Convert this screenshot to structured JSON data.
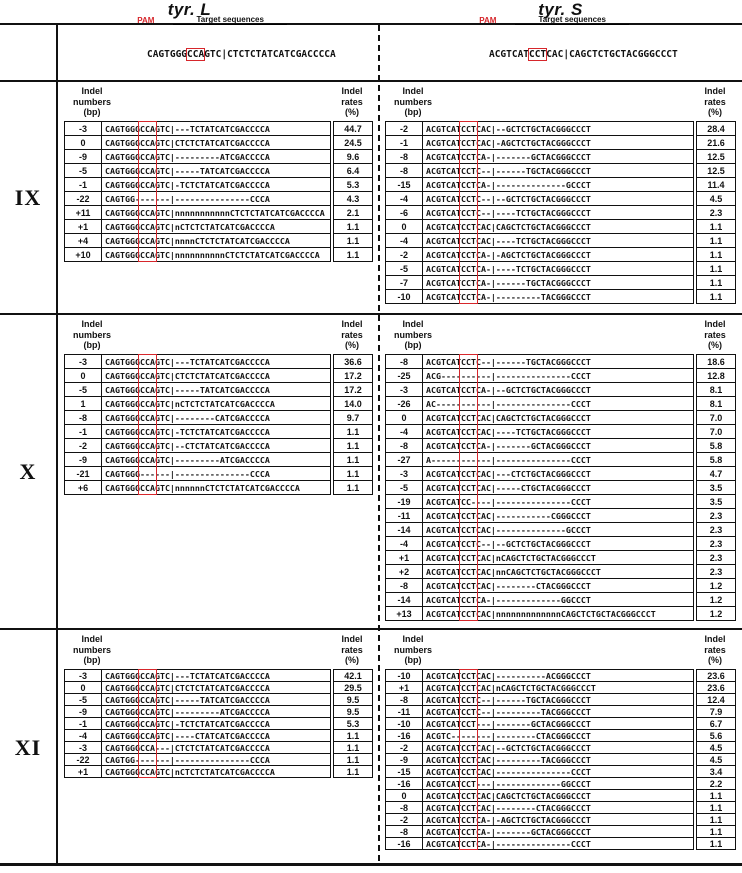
{
  "figure": {
    "titles": {
      "left": "tyr. L",
      "right": "tyr. S"
    },
    "pam_label": "PAM",
    "target_label": "Target sequences",
    "colors": {
      "pam_red": "#d6262b"
    },
    "refs": {
      "left": {
        "prefix": "CAGTGGG",
        "pam": "CCA",
        "suffix": "GTC|CTCTCTATCATCGACCCCA"
      },
      "right": {
        "prefix": "ACGTCAT",
        "pam": "CCT",
        "suffix": "CAC|CAGCTCTGCTACGGGCCCT"
      }
    },
    "column_headers": {
      "numbers": "Indel\nnumbers\n(bp)",
      "rates": "Indel\nrates\n(%)"
    },
    "panels": [
      {
        "label": "IX",
        "left_rows": [
          {
            "indel": "-3",
            "seq": "CAGTGGGCCAGTC|---TCTATCATCGACCCCA",
            "rate": "44.7"
          },
          {
            "indel": "0",
            "seq": "CAGTGGGCCAGTC|CTCTCTATCATCGACCCCA",
            "rate": "24.5"
          },
          {
            "indel": "-9",
            "seq": "CAGTGGGCCAGTC|---------ATCGACCCCA",
            "rate": "9.6"
          },
          {
            "indel": "-5",
            "seq": "CAGTGGGCCAGTC|-----TATCATCGACCCCA",
            "rate": "6.4"
          },
          {
            "indel": "-1",
            "seq": "CAGTGGGCCAGTC|-TCTCTATCATCGACCCCA",
            "rate": "5.3"
          },
          {
            "indel": "-22",
            "seq": "CAGTGG-------|---------------CCCA",
            "rate": "4.3"
          },
          {
            "indel": "+11",
            "seq": "CAGTGGGCCAGTC|nnnnnnnnnnnCTCTCTATCATCGACCCCA",
            "rate": "2.1"
          },
          {
            "indel": "+1",
            "seq": "CAGTGGGCCAGTC|nCTCTCTATCATCGACCCCA",
            "rate": "1.1"
          },
          {
            "indel": "+4",
            "seq": "CAGTGGGCCAGTC|nnnnCTCTCTATCATCGACCCCA",
            "rate": "1.1"
          },
          {
            "indel": "+10",
            "seq": "CAGTGGGCCAGTC|nnnnnnnnnnCTCTCTATCATCGACCCCA",
            "rate": "1.1"
          }
        ],
        "right_rows": [
          {
            "indel": "-2",
            "seq": "ACGTCATCCTCAC|--GCTCTGCTACGGGCCCT",
            "rate": "28.4"
          },
          {
            "indel": "-1",
            "seq": "ACGTCATCCTCAC|-AGCTCTGCTACGGGCCCT",
            "rate": "21.6"
          },
          {
            "indel": "-8",
            "seq": "ACGTCATCCTCA-|-------GCTACGGGCCCT",
            "rate": "12.5"
          },
          {
            "indel": "-8",
            "seq": "ACGTCATCCTC--|------TGCTACGGGCCCT",
            "rate": "12.5"
          },
          {
            "indel": "-15",
            "seq": "ACGTCATCCTCA-|--------------GCCCT",
            "rate": "11.4"
          },
          {
            "indel": "-4",
            "seq": "ACGTCATCCTC--|--GCTCTGCTACGGGCCCT",
            "rate": "4.5"
          },
          {
            "indel": "-6",
            "seq": "ACGTCATCCTC--|----TCTGCTACGGGCCCT",
            "rate": "2.3"
          },
          {
            "indel": "0",
            "seq": "ACGTCATCCTCAC|CAGCTCTGCTACGGGCCCT",
            "rate": "1.1"
          },
          {
            "indel": "-4",
            "seq": "ACGTCATCCTCAC|----TCTGCTACGGGCCCT",
            "rate": "1.1"
          },
          {
            "indel": "-2",
            "seq": "ACGTCATCCTCA-|-AGCTCTGCTACGGGCCCT",
            "rate": "1.1"
          },
          {
            "indel": "-5",
            "seq": "ACGTCATCCTCA-|----TCTGCTACGGGCCCT",
            "rate": "1.1"
          },
          {
            "indel": "-7",
            "seq": "ACGTCATCCTCA-|------TGCTACGGGCCCT",
            "rate": "1.1"
          },
          {
            "indel": "-10",
            "seq": "ACGTCATCCTCA-|---------TACGGGCCCT",
            "rate": "1.1"
          }
        ]
      },
      {
        "label": "X",
        "left_rows": [
          {
            "indel": "-3",
            "seq": "CAGTGGGCCAGTC|---TCTATCATCGACCCCA",
            "rate": "36.6"
          },
          {
            "indel": "0",
            "seq": "CAGTGGGCCAGTC|CTCTCTATCATCGACCCCA",
            "rate": "17.2"
          },
          {
            "indel": "-5",
            "seq": "CAGTGGGCCAGTC|-----TATCATCGACCCCA",
            "rate": "17.2"
          },
          {
            "indel": "1",
            "seq": "CAGTGGGCCAGTC|nCTCTCTATCATCGACCCCA",
            "rate": "14.0"
          },
          {
            "indel": "-8",
            "seq": "CAGTGGGCCAGTC|--------CATCGACCCCA",
            "rate": "9.7"
          },
          {
            "indel": "-1",
            "seq": "CAGTGGGCCAGTC|-TCTCTATCATCGACCCCA",
            "rate": "1.1"
          },
          {
            "indel": "-2",
            "seq": "CAGTGGGCCAGTC|--CTCTATCATCGACCCCA",
            "rate": "1.1"
          },
          {
            "indel": "-9",
            "seq": "CAGTGGGCCAGTC|---------ATCGACCCCA",
            "rate": "1.1"
          },
          {
            "indel": "-21",
            "seq": "CAGTGGG------|---------------CCCA",
            "rate": "1.1"
          },
          {
            "indel": "+6",
            "seq": "CAGTGGGCCAGTC|nnnnnnCTCTCTATCATCGACCCCA",
            "rate": "1.1"
          }
        ],
        "right_rows": [
          {
            "indel": "-8",
            "seq": "ACGTCATCCTC--|------TGCTACGGGCCCT",
            "rate": "18.6"
          },
          {
            "indel": "-25",
            "seq": "ACG----------|---------------CCCT",
            "rate": "12.8"
          },
          {
            "indel": "-3",
            "seq": "ACGTCATCCTCA-|--GCTCTGCTACGGGCCCT",
            "rate": "8.1"
          },
          {
            "indel": "-26",
            "seq": "AC-----------|---------------CCCT",
            "rate": "8.1"
          },
          {
            "indel": "0",
            "seq": "ACGTCATCCTCAC|CAGCTCTGCTACGGGCCCT",
            "rate": "7.0"
          },
          {
            "indel": "-4",
            "seq": "ACGTCATCCTCAC|----TCTGCTACGGGCCCT",
            "rate": "7.0"
          },
          {
            "indel": "-8",
            "seq": "ACGTCATCCTCA-|-------GCTACGGGCCCT",
            "rate": "5.8"
          },
          {
            "indel": "-27",
            "seq": "A------------|---------------CCCT",
            "rate": "5.8"
          },
          {
            "indel": "-3",
            "seq": "ACGTCATCCTCAC|---CTCTGCTACGGGCCCT",
            "rate": "4.7"
          },
          {
            "indel": "-5",
            "seq": "ACGTCATCCTCAC|-----CTGCTACGGGCCCT",
            "rate": "3.5"
          },
          {
            "indel": "-19",
            "seq": "ACGTCATCC----|---------------CCCT",
            "rate": "3.5"
          },
          {
            "indel": "-11",
            "seq": "ACGTCATCCTCAC|-----------CGGGCCCT",
            "rate": "2.3"
          },
          {
            "indel": "-14",
            "seq": "ACGTCATCCTCAC|--------------GCCCT",
            "rate": "2.3"
          },
          {
            "indel": "-4",
            "seq": "ACGTCATCCTC--|--GCTCTGCTACGGGCCCT",
            "rate": "2.3"
          },
          {
            "indel": "+1",
            "seq": "ACGTCATCCTCAC|nCAGCTCTGCTACGGGCCCT",
            "rate": "2.3"
          },
          {
            "indel": "+2",
            "seq": "ACGTCATCCTCAC|nnCAGCTCTGCTACGGGCCCT",
            "rate": "2.3"
          },
          {
            "indel": "-8",
            "seq": "ACGTCATCCTCAC|--------CTACGGGCCCT",
            "rate": "1.2"
          },
          {
            "indel": "-14",
            "seq": "ACGTCATCCTCA-|-------------GGCCCT",
            "rate": "1.2"
          },
          {
            "indel": "+13",
            "seq": "ACGTCATCCTCAC|nnnnnnnnnnnnnCAGCTCTGCTACGGGCCCT",
            "rate": "1.2"
          }
        ]
      },
      {
        "label": "XI",
        "left_rows": [
          {
            "indel": "-3",
            "seq": "CAGTGGGCCAGTC|---TCTATCATCGACCCCA",
            "rate": "42.1"
          },
          {
            "indel": "0",
            "seq": "CAGTGGGCCAGTC|CTCTCTATCATCGACCCCA",
            "rate": "29.5"
          },
          {
            "indel": "-5",
            "seq": "CAGTGGGCCAGTC|-----TATCATCGACCCCA",
            "rate": "9.5"
          },
          {
            "indel": "-9",
            "seq": "CAGTGGGCCAGTC|---------ATCGACCCCA",
            "rate": "9.5"
          },
          {
            "indel": "-1",
            "seq": "CAGTGGGCCAGTC|-TCTCTATCATCGACCCCA",
            "rate": "5.3"
          },
          {
            "indel": "-4",
            "seq": "CAGTGGGCCAGTC|----CTATCATCGACCCCA",
            "rate": "1.1"
          },
          {
            "indel": "-3",
            "seq": "CAGTGGGCCA---|CTCTCTATCATCGACCCCA",
            "rate": "1.1"
          },
          {
            "indel": "-22",
            "seq": "CAGTGG-------|---------------CCCA",
            "rate": "1.1"
          },
          {
            "indel": "+1",
            "seq": "CAGTGGGCCAGTC|nCTCTCTATCATCGACCCCA",
            "rate": "1.1"
          }
        ],
        "right_rows": [
          {
            "indel": "-10",
            "seq": "ACGTCATCCTCAC|----------ACGGGCCCT",
            "rate": "23.6"
          },
          {
            "indel": "+1",
            "seq": "ACGTCATCCTCAC|nCAGCTCTGCTACGGGCCCT",
            "rate": "23.6"
          },
          {
            "indel": "-8",
            "seq": "ACGTCATCCTC--|------TGCTACGGGCCCT",
            "rate": "12.4"
          },
          {
            "indel": "-11",
            "seq": "ACGTCATCCTC--|---------TACGGGCCCT",
            "rate": "7.9"
          },
          {
            "indel": "-10",
            "seq": "ACGTCATCCT---|-------GCTACGGGCCCT",
            "rate": "6.7"
          },
          {
            "indel": "-16",
            "seq": "ACGTC--------|--------CTACGGGCCCT",
            "rate": "5.6"
          },
          {
            "indel": "-2",
            "seq": "ACGTCATCCTCAC|--GCTCTGCTACGGGCCCT",
            "rate": "4.5"
          },
          {
            "indel": "-9",
            "seq": "ACGTCATCCTCAC|---------TACGGGCCCT",
            "rate": "4.5"
          },
          {
            "indel": "-15",
            "seq": "ACGTCATCCTCAC|---------------CCCT",
            "rate": "3.4"
          },
          {
            "indel": "-16",
            "seq": "ACGTCATCCT---|-------------GGCCCT",
            "rate": "2.2"
          },
          {
            "indel": "0",
            "seq": "ACGTCATCCTCAC|CAGCTCTGCTACGGGCCCT",
            "rate": "1.1"
          },
          {
            "indel": "-8",
            "seq": "ACGTCATCCTCAC|--------CTACGGGCCCT",
            "rate": "1.1"
          },
          {
            "indel": "-2",
            "seq": "ACGTCATCCTCA-|-AGCTCTGCTACGGGCCCT",
            "rate": "1.1"
          },
          {
            "indel": "-8",
            "seq": "ACGTCATCCTCA-|-------GCTACGGGCCCT",
            "rate": "1.1"
          },
          {
            "indel": "-16",
            "seq": "ACGTCATCCTCA-|---------------CCCT",
            "rate": "1.1"
          }
        ]
      }
    ]
  }
}
